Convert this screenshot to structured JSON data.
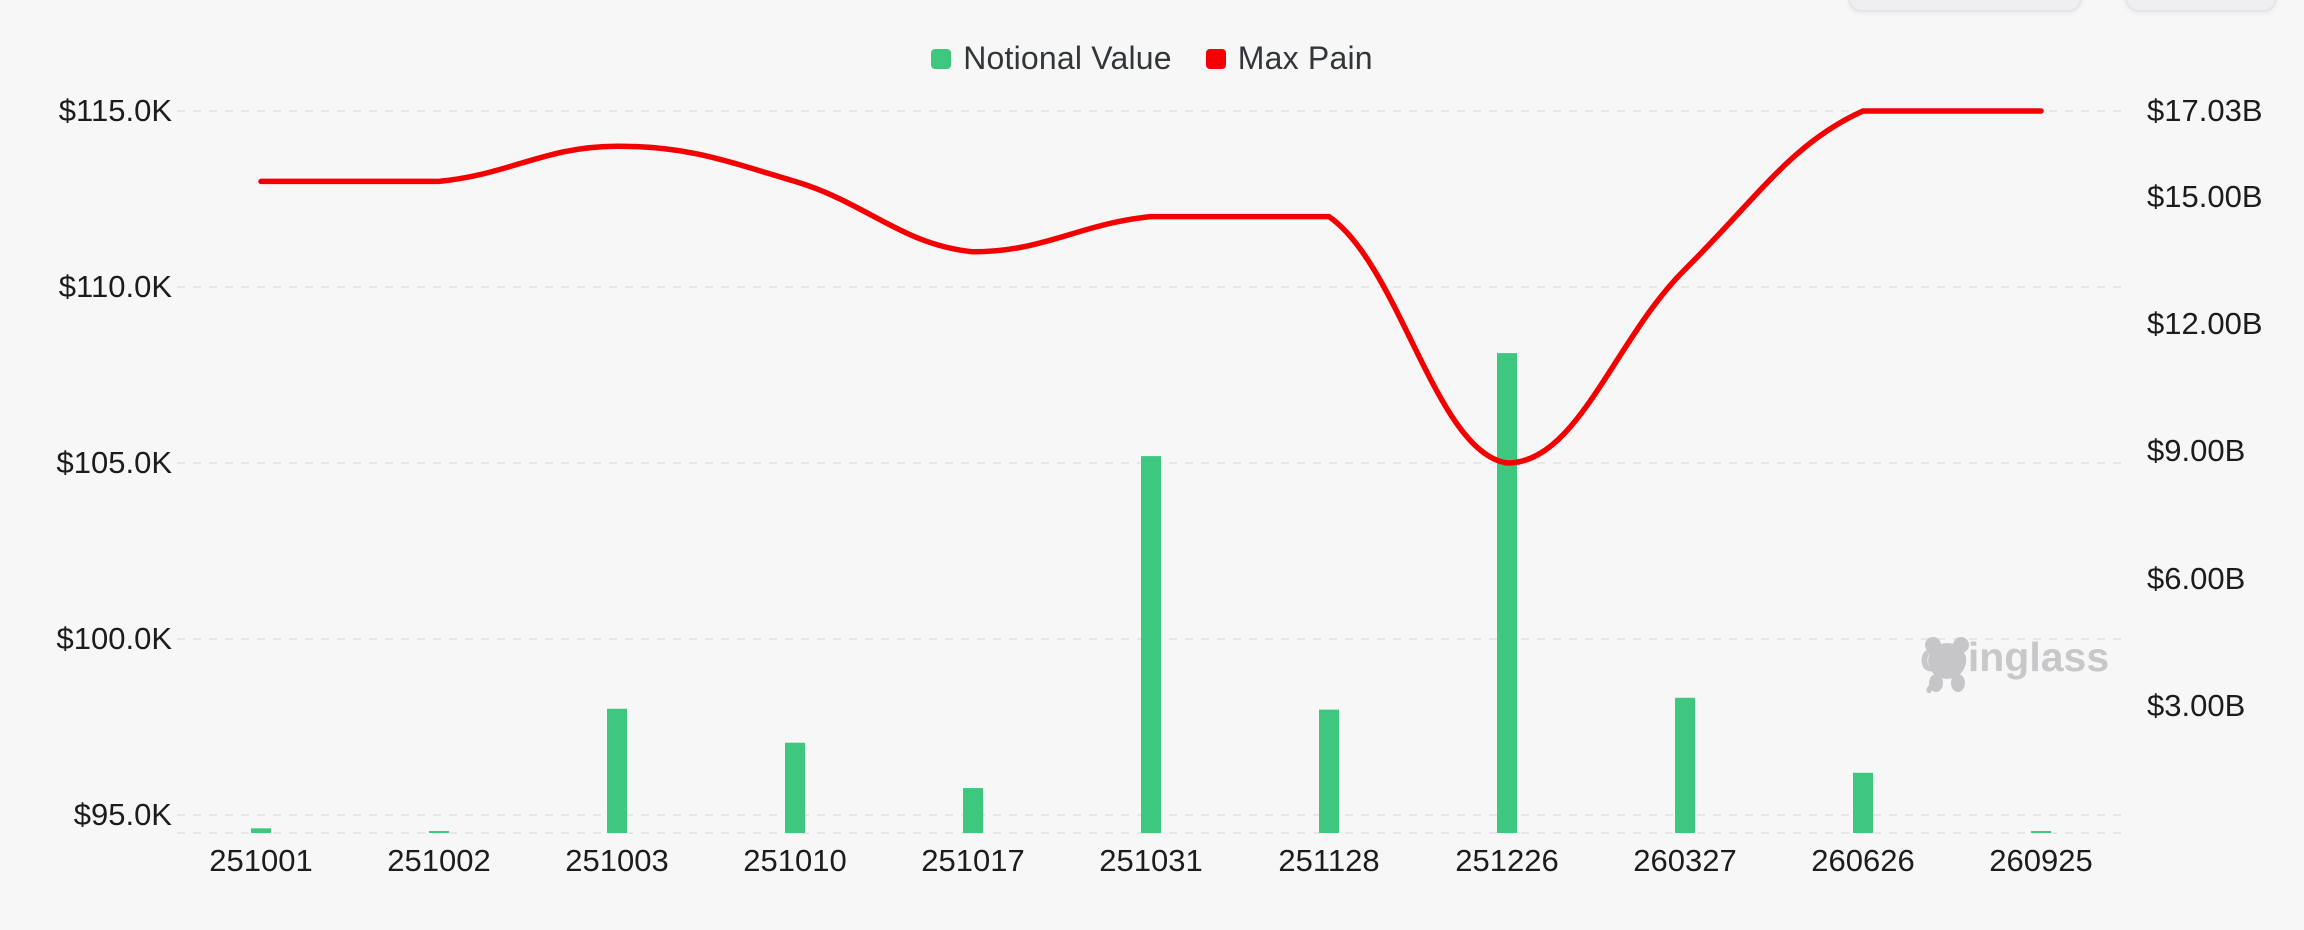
{
  "page": {
    "background": "#f7f7f8"
  },
  "legend": {
    "items": [
      {
        "label": "Notional Value",
        "color": "#3ec87f"
      },
      {
        "label": "Max Pain",
        "color": "#f40000"
      }
    ]
  },
  "watermark": {
    "text": "coinglass"
  },
  "chart_data": {
    "type": "bar",
    "subtype": "dual-axis bar + smooth line",
    "categories": [
      "251001",
      "251002",
      "251003",
      "251010",
      "251017",
      "251031",
      "251128",
      "251226",
      "260327",
      "260626",
      "260925"
    ],
    "series": [
      {
        "name": "Notional Value",
        "type": "bar",
        "axis": "right",
        "unit": "USD billions",
        "color": "#3ec87f",
        "values": [
          0.11,
          0.04,
          2.93,
          2.13,
          1.06,
          8.89,
          2.91,
          11.32,
          3.19,
          1.42,
          0.04
        ]
      },
      {
        "name": "Max Pain",
        "type": "line",
        "axis": "left",
        "unit": "USD thousands",
        "color": "#f40000",
        "smooth": true,
        "values": [
          113.0,
          113.0,
          114.0,
          113.0,
          111.0,
          112.0,
          112.0,
          105.0,
          110.5,
          115.0,
          115.0
        ]
      }
    ],
    "left_axis": {
      "ticks": [
        "$115.0K",
        "$110.0K",
        "$105.0K",
        "$100.0K",
        "$95.0K"
      ],
      "tick_values": [
        115,
        110,
        105,
        100,
        95
      ],
      "min": 94.49,
      "max": 115
    },
    "right_axis": {
      "ticks": [
        "$17.03B",
        "$15.00B",
        "$12.00B",
        "$9.00B",
        "$6.00B",
        "$3.00B"
      ],
      "tick_values": [
        17.03,
        15,
        12,
        9,
        6,
        3
      ],
      "min": 0,
      "max": 17.03
    },
    "grid": "horizontal dashed lines only",
    "legend_position": "top-center"
  }
}
